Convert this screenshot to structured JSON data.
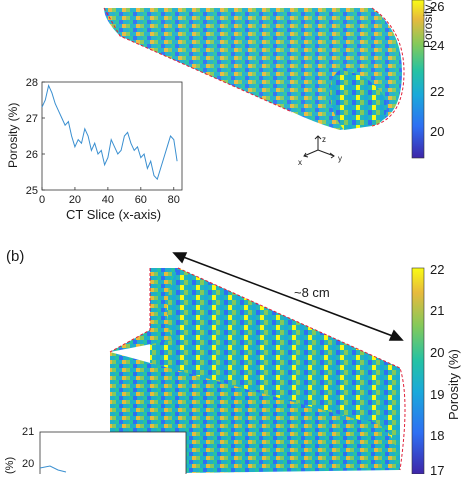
{
  "panel_b_label": "(b)",
  "top_volume": {
    "cbar_ticks": [
      "26",
      "24",
      "22",
      "20"
    ],
    "cbar_label": "Porosity (%",
    "axes_triad": {
      "z": "z",
      "x": "x",
      "y": "y"
    }
  },
  "inset_plot": {
    "ylabel": "Porosity (%)",
    "xlabel": "CT Slice (x-axis)",
    "yticks": [
      "28",
      "27",
      "26",
      "25"
    ],
    "xticks": [
      "0",
      "20",
      "40",
      "60",
      "80"
    ]
  },
  "bottom_volume": {
    "scale_label": "~8 cm",
    "cbar_ticks": [
      "22",
      "21",
      "20",
      "19",
      "18",
      "17"
    ],
    "cbar_label": "Porosity (%)"
  },
  "bottom_inset": {
    "yticks": [
      "21",
      "20"
    ],
    "ylabel": "(%)"
  },
  "colors": {
    "colormap": [
      "#3e26a8",
      "#2e6ff3",
      "#1aa9da",
      "#24c2a4",
      "#84c95a",
      "#e7ba3d",
      "#f9fb15"
    ],
    "line": "#3a8fd0",
    "outline": "#e0223a"
  },
  "chart_data": {
    "type": "line",
    "title": "",
    "xlabel": "CT Slice (x-axis)",
    "ylabel": "Porosity (%)",
    "xlim": [
      0,
      85
    ],
    "ylim": [
      25,
      28
    ],
    "x": [
      0,
      2,
      4,
      6,
      8,
      10,
      12,
      14,
      16,
      18,
      20,
      22,
      24,
      26,
      28,
      30,
      32,
      34,
      36,
      38,
      40,
      42,
      44,
      46,
      48,
      50,
      52,
      54,
      56,
      58,
      60,
      62,
      64,
      66,
      68,
      70,
      72,
      74,
      76,
      78,
      80,
      82
    ],
    "y": [
      27.3,
      27.5,
      27.9,
      27.7,
      27.4,
      27.2,
      27.0,
      26.8,
      26.9,
      26.5,
      26.2,
      26.4,
      26.3,
      26.7,
      26.5,
      26.1,
      26.3,
      26.0,
      26.1,
      25.7,
      25.9,
      26.4,
      26.2,
      26.0,
      26.1,
      26.5,
      26.6,
      26.3,
      26.1,
      26.2,
      25.9,
      26.0,
      25.6,
      25.8,
      25.4,
      25.3,
      25.6,
      25.9,
      26.2,
      26.5,
      26.4,
      25.8
    ]
  }
}
